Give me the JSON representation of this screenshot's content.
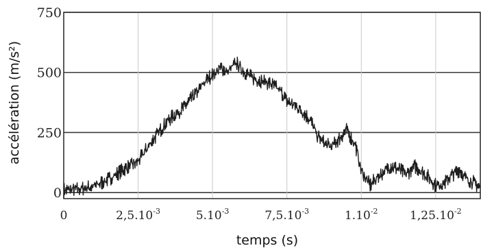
{
  "chart_data": {
    "type": "line",
    "title": "",
    "xlabel": "temps (s)",
    "ylabel": "accélération (m/s²)",
    "xlim": [
      0,
      0.014
    ],
    "ylim": [
      -25,
      750
    ],
    "grid": true,
    "y_ticks": [
      {
        "value": 0,
        "label": "0"
      },
      {
        "value": 250,
        "label": "250"
      },
      {
        "value": 500,
        "label": "500"
      },
      {
        "value": 750,
        "label": "750"
      }
    ],
    "x_ticks": [
      {
        "value": 0,
        "label": "0",
        "exp": ""
      },
      {
        "value": 0.0025,
        "label": "2,5.10",
        "exp": "-3"
      },
      {
        "value": 0.005,
        "label": "5.10",
        "exp": "-3"
      },
      {
        "value": 0.0075,
        "label": "7,5.10",
        "exp": "-3"
      },
      {
        "value": 0.01,
        "label": "1.10",
        "exp": "-2"
      },
      {
        "value": 0.0125,
        "label": "1,25.10",
        "exp": "-2"
      }
    ],
    "series": [
      {
        "x": [
          0,
          0.0005,
          0.001,
          0.0015,
          0.002,
          0.0025,
          0.003,
          0.0035,
          0.004,
          0.0045,
          0.0048,
          0.005,
          0.0053,
          0.0055,
          0.0058,
          0.006,
          0.0063,
          0.0065,
          0.0068,
          0.007,
          0.0073,
          0.0075,
          0.0078,
          0.008,
          0.0083,
          0.0085,
          0.0088,
          0.009,
          0.0093,
          0.0095,
          0.0098,
          0.01,
          0.0103,
          0.0105,
          0.0108,
          0.011,
          0.0113,
          0.0115,
          0.0118,
          0.012,
          0.0123,
          0.0125,
          0.0128,
          0.013,
          0.0133,
          0.0135,
          0.0138,
          0.014
        ],
        "y": [
          10,
          15,
          25,
          55,
          95,
          130,
          220,
          300,
          350,
          420,
          470,
          490,
          520,
          500,
          540,
          510,
          480,
          470,
          460,
          450,
          420,
          380,
          360,
          340,
          300,
          240,
          200,
          190,
          230,
          260,
          200,
          90,
          30,
          60,
          90,
          110,
          95,
          75,
          110,
          90,
          60,
          30,
          40,
          70,
          95,
          60,
          40,
          20
        ]
      }
    ]
  }
}
